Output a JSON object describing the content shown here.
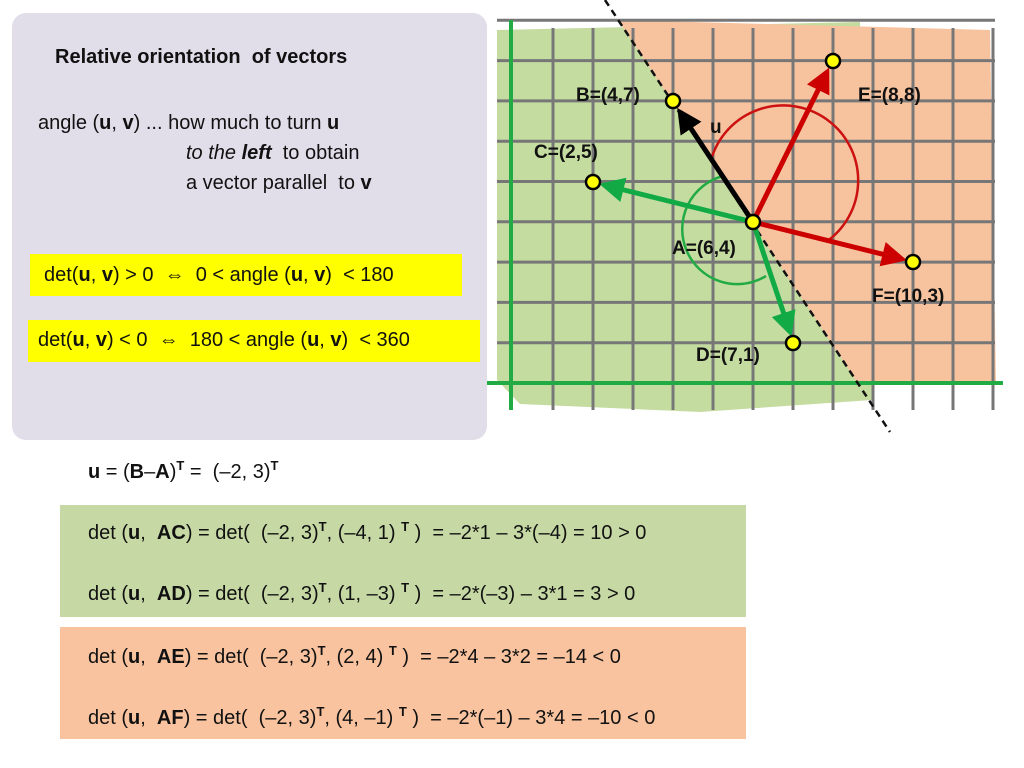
{
  "panel": {
    "title": "Relative orientation  of vectors",
    "definition": [
      [
        "angle (",
        "u",
        ", ",
        "v",
        ") ... how much to turn ",
        "u"
      ],
      [
        "to the ",
        "left",
        "  to obtain"
      ],
      [
        "a vector parallel  to ",
        "v"
      ]
    ],
    "rules": [
      [
        "det(",
        "u",
        ", ",
        "v",
        ") > 0  ",
        "⇔",
        "  0 < angle (",
        "u",
        ", ",
        "v",
        ")  < 180"
      ],
      [
        "det(",
        "u",
        ", ",
        "v",
        ") < 0  ",
        "⇔",
        "  180 < angle (",
        "u",
        ", ",
        "v",
        ")  < 360"
      ]
    ]
  },
  "diagram": {
    "labels": {
      "B": "B=(4,7)",
      "E": "E=(8,8)",
      "u": "u",
      "C": "C=(2,5)",
      "A": "A=(6,4)",
      "F": "F=(10,3)",
      "D": "D=(7,1)"
    }
  },
  "equations": {
    "u_def": [
      "u",
      " = (",
      "B",
      "–",
      "A",
      ")",
      "T",
      " =  (–2, 3)",
      "T"
    ],
    "lines": [
      [
        "det (",
        "u",
        ",  ",
        "AC",
        ") = det(  (–2, 3)",
        "T",
        ", (–4, 1) ",
        "T",
        " )  = –2*1 – 3*(–4) = 10 > 0"
      ],
      [
        "det (",
        "u",
        ",  ",
        "AD",
        ") = det(  (–2, 3)",
        "T",
        ", (1, –3) ",
        "T",
        " )  = –2*(–3) – 3*1 = 3 > 0"
      ],
      [
        "det (",
        "u",
        ",  ",
        "AE",
        ") = det(  (–2, 3)",
        "T",
        ", (2, 4) ",
        "T",
        " )  = –2*4 – 3*2 = –14 < 0"
      ],
      [
        "det (",
        "u",
        ",  ",
        "AF",
        ") = det(  (–2, 3)",
        "T",
        ", (4, –1) ",
        "T",
        " )  = –2*(–1) – 3*4 = –10 < 0"
      ]
    ]
  }
}
